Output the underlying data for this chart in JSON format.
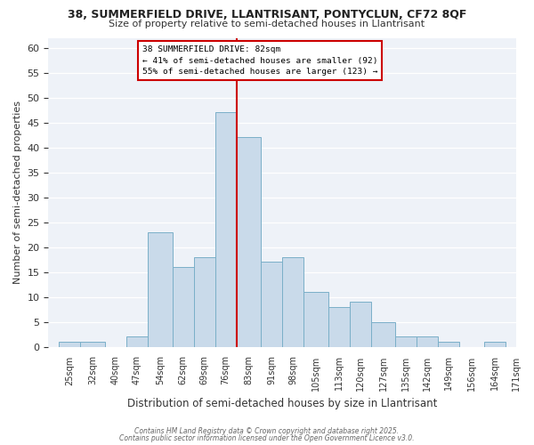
{
  "title1": "38, SUMMERFIELD DRIVE, LLANTRISANT, PONTYCLUN, CF72 8QF",
  "title2": "Size of property relative to semi-detached houses in Llantrisant",
  "xlabel": "Distribution of semi-detached houses by size in Llantrisant",
  "ylabel": "Number of semi-detached properties",
  "bins": [
    25,
    32,
    40,
    47,
    54,
    62,
    69,
    76,
    83,
    91,
    98,
    105,
    113,
    120,
    127,
    135,
    142,
    149,
    156,
    164,
    171
  ],
  "counts": [
    1,
    1,
    0,
    2,
    23,
    16,
    18,
    47,
    42,
    17,
    18,
    11,
    8,
    9,
    5,
    2,
    2,
    1,
    0,
    1,
    0
  ],
  "bar_color": "#c9daea",
  "bar_edge_color": "#7aafc8",
  "vline_color": "#cc0000",
  "annotation_title": "38 SUMMERFIELD DRIVE: 82sqm",
  "annotation_line1": "← 41% of semi-detached houses are smaller (92)",
  "annotation_line2": "55% of semi-detached houses are larger (123) →",
  "annotation_box_edge_color": "#cc0000",
  "ylim": [
    0,
    62
  ],
  "yticks": [
    0,
    5,
    10,
    15,
    20,
    25,
    30,
    35,
    40,
    45,
    50,
    55,
    60
  ],
  "bg_color": "#ffffff",
  "plot_bg_color": "#eef2f8",
  "grid_color": "#ffffff",
  "footer1": "Contains HM Land Registry data © Crown copyright and database right 2025.",
  "footer2": "Contains public sector information licensed under the Open Government Licence v3.0."
}
